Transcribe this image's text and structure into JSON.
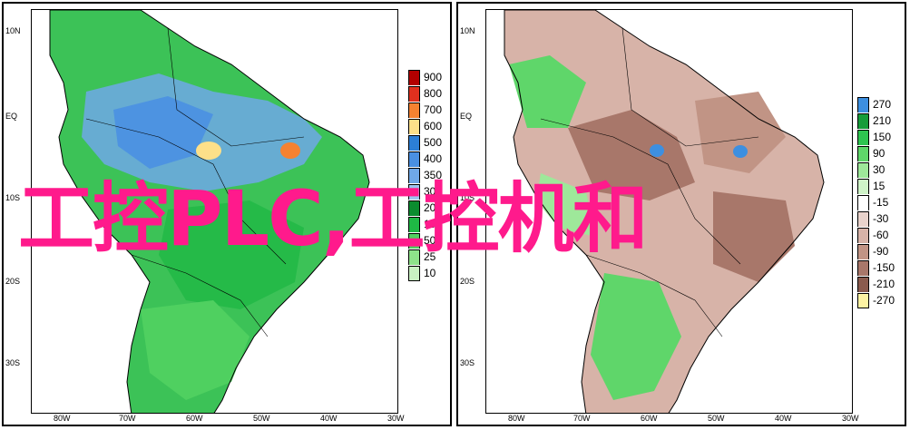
{
  "overlay_text": "工控PLC,工控机和",
  "left_panel": {
    "lat_labels": [
      "10N",
      "EQ",
      "10S",
      "20S",
      "30S"
    ],
    "lon_labels": [
      "80W",
      "70W",
      "60W",
      "50W",
      "40W",
      "30W"
    ],
    "colorbar": [
      {
        "label": "900",
        "color": "#b30000"
      },
      {
        "label": "800",
        "color": "#e0301e"
      },
      {
        "label": "700",
        "color": "#f58231"
      },
      {
        "label": "600",
        "color": "#fde089"
      },
      {
        "label": "500",
        "color": "#2c7fd6"
      },
      {
        "label": "400",
        "color": "#4a90e2"
      },
      {
        "label": "350",
        "color": "#6fa8e8"
      },
      {
        "label": "300",
        "color": "#9cc5f0"
      },
      {
        "label": "200",
        "color": "#0b8c2f"
      },
      {
        "label": "100",
        "color": "#1fb845"
      },
      {
        "label": "50",
        "color": "#4fd060"
      },
      {
        "label": "25",
        "color": "#8ee38a"
      },
      {
        "label": "10",
        "color": "#c9f2c2"
      }
    ]
  },
  "right_panel": {
    "lat_labels": [
      "10N",
      "EQ",
      "10S",
      "20S",
      "30S"
    ],
    "lon_labels": [
      "80W",
      "70W",
      "60W",
      "50W",
      "40W",
      "30W"
    ],
    "colorbar": [
      {
        "label": "270",
        "color": "#3d8fe0"
      },
      {
        "label": "210",
        "color": "#169c3a"
      },
      {
        "label": "150",
        "color": "#2ec450"
      },
      {
        "label": "90",
        "color": "#5fd66a"
      },
      {
        "label": "30",
        "color": "#9ee89a"
      },
      {
        "label": "15",
        "color": "#cff4c8"
      },
      {
        "label": "-15",
        "color": "#ffffff"
      },
      {
        "label": "-30",
        "color": "#e9d3cc"
      },
      {
        "label": "-60",
        "color": "#d7b3a8"
      },
      {
        "label": "-90",
        "color": "#c19485"
      },
      {
        "label": "-150",
        "color": "#a8776a"
      },
      {
        "label": "-210",
        "color": "#8a5b4e"
      },
      {
        "label": "-270",
        "color": "#fdf3a3"
      }
    ]
  }
}
